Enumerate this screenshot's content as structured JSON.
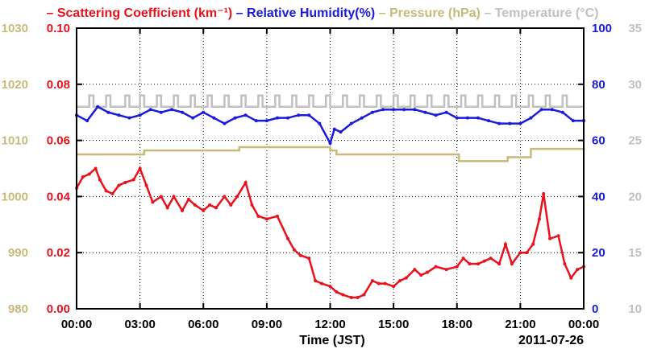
{
  "chart_data": {
    "type": "line",
    "legend": {
      "placement": "top",
      "entries": [
        {
          "name": "Scattering Coefficient (km⁻¹)",
          "color": "#e8111c"
        },
        {
          "name": "Relative Humidity(%)",
          "color": "#1a1adc"
        },
        {
          "name": "Pressure (hPa)",
          "color": "#c8b97a"
        },
        {
          "name": "Temperature (°C)",
          "color": "#c0c0c0"
        }
      ]
    },
    "xlabel": "Time (JST)",
    "date_label": "2011-07-26",
    "x_ticks": [
      "00:00",
      "03:00",
      "06:00",
      "09:00",
      "12:00",
      "15:00",
      "18:00",
      "21:00",
      "00:00"
    ],
    "xlim_hours": [
      0,
      24
    ],
    "grid": true,
    "axes": {
      "scattering": {
        "side": "left-inner",
        "color": "#e8111c",
        "ylim": [
          0.0,
          0.1
        ],
        "ticks": [
          "0.00",
          "0.02",
          "0.04",
          "0.06",
          "0.08",
          "0.10"
        ]
      },
      "pressure": {
        "side": "left-outer",
        "color": "#c8b97a",
        "ylim": [
          980,
          1030
        ],
        "ticks": [
          "980",
          "990",
          "1000",
          "1010",
          "1020",
          "1030"
        ]
      },
      "humidity": {
        "side": "right-inner",
        "color": "#1a1adc",
        "ylim": [
          0,
          100
        ],
        "ticks": [
          "0",
          "20",
          "40",
          "60",
          "80",
          "100"
        ]
      },
      "temperature": {
        "side": "right-outer",
        "color": "#c0c0c0",
        "ylim": [
          10,
          35
        ],
        "ticks": [
          "10",
          "15",
          "20",
          "25",
          "30",
          "35"
        ]
      }
    },
    "series": [
      {
        "name": "Scattering Coefficient",
        "axis": "scattering",
        "color": "#e8111c",
        "markers": true,
        "x": [
          0,
          0.3,
          0.6,
          0.9,
          1.1,
          1.4,
          1.7,
          2.0,
          2.3,
          2.7,
          3.0,
          3.3,
          3.6,
          4.0,
          4.3,
          4.6,
          5.0,
          5.3,
          5.6,
          6.0,
          6.3,
          6.6,
          7.0,
          7.3,
          7.6,
          8.0,
          8.3,
          8.6,
          9.0,
          9.5,
          10.0,
          10.3,
          10.6,
          11.0,
          11.3,
          11.6,
          12.0,
          12.3,
          12.6,
          13.0,
          13.3,
          13.6,
          14.0,
          14.3,
          14.6,
          15.0,
          15.3,
          15.6,
          16.0,
          16.3,
          16.6,
          17.0,
          17.5,
          18.0,
          18.3,
          18.6,
          19.0,
          19.3,
          19.6,
          20.0,
          20.3,
          20.6,
          21.0,
          21.3,
          21.6,
          21.9,
          22.1,
          22.4,
          22.8,
          23.1,
          23.4,
          23.7,
          24.0
        ],
        "y": [
          0.043,
          0.047,
          0.048,
          0.05,
          0.046,
          0.042,
          0.041,
          0.044,
          0.045,
          0.046,
          0.05,
          0.044,
          0.038,
          0.04,
          0.036,
          0.04,
          0.035,
          0.039,
          0.037,
          0.035,
          0.037,
          0.036,
          0.04,
          0.037,
          0.04,
          0.045,
          0.037,
          0.033,
          0.032,
          0.033,
          0.025,
          0.021,
          0.019,
          0.018,
          0.01,
          0.009,
          0.008,
          0.006,
          0.005,
          0.004,
          0.004,
          0.005,
          0.01,
          0.009,
          0.009,
          0.008,
          0.01,
          0.011,
          0.014,
          0.012,
          0.013,
          0.015,
          0.014,
          0.015,
          0.018,
          0.016,
          0.016,
          0.017,
          0.018,
          0.016,
          0.023,
          0.016,
          0.02,
          0.02,
          0.023,
          0.032,
          0.041,
          0.025,
          0.026,
          0.016,
          0.011,
          0.014,
          0.015
        ]
      },
      {
        "name": "Relative Humidity",
        "axis": "humidity",
        "color": "#1a1adc",
        "markers": true,
        "x": [
          0,
          0.5,
          1.0,
          1.5,
          2.0,
          2.5,
          3.0,
          3.5,
          4.0,
          4.5,
          5.0,
          5.5,
          6.0,
          6.5,
          7.0,
          7.5,
          8.0,
          8.5,
          9.0,
          9.5,
          10.0,
          10.5,
          11.0,
          11.5,
          12.0,
          12.2,
          12.5,
          13.0,
          13.5,
          14.0,
          14.5,
          15.0,
          15.5,
          16.0,
          16.5,
          17.0,
          17.5,
          18.0,
          18.5,
          19.0,
          19.5,
          20.0,
          20.5,
          21.0,
          21.5,
          22.0,
          22.5,
          23.0,
          23.5,
          24.0
        ],
        "y": [
          69,
          67,
          72,
          70,
          69,
          68,
          69,
          71,
          70,
          71,
          70,
          68,
          70,
          68,
          66,
          68,
          69,
          67,
          67,
          68,
          68,
          69,
          69,
          66,
          59,
          64,
          63,
          66,
          68,
          70,
          71,
          71,
          71,
          71,
          70,
          69,
          70,
          68,
          68,
          68,
          67,
          66,
          66,
          66,
          68,
          71,
          71,
          70,
          67,
          67
        ]
      },
      {
        "name": "Pressure",
        "axis": "pressure",
        "color": "#c8b97a",
        "markers": false,
        "step": true,
        "x": [
          0,
          3.0,
          3.2,
          7.5,
          7.7,
          11.8,
          12.0,
          12.3,
          17.9,
          18.1,
          20.2,
          20.4,
          21.3,
          21.5,
          24.0
        ],
        "y": [
          1007.5,
          1007.5,
          1008.2,
          1008.2,
          1008.8,
          1008.8,
          1008.2,
          1007.5,
          1007.5,
          1006.3,
          1006.3,
          1007.0,
          1007.0,
          1008.5,
          1008.2
        ]
      },
      {
        "name": "Temperature",
        "axis": "temperature",
        "color": "#c0c0c0",
        "markers": false,
        "step": true,
        "x": [
          0,
          0.6,
          0.8,
          1.4,
          1.6,
          2.3,
          2.5,
          3.0,
          3.2,
          3.8,
          4.0,
          4.6,
          4.8,
          5.4,
          5.6,
          6.2,
          6.4,
          7.0,
          7.2,
          7.8,
          8.0,
          8.6,
          8.8,
          9.4,
          9.6,
          10.2,
          10.4,
          11.0,
          11.2,
          11.8,
          12.0,
          12.6,
          12.8,
          13.4,
          13.6,
          14.2,
          14.4,
          15.0,
          15.2,
          15.8,
          16.0,
          16.6,
          16.8,
          17.4,
          17.6,
          18.2,
          18.4,
          19.0,
          19.2,
          19.8,
          20.0,
          20.6,
          20.8,
          21.4,
          21.6,
          22.2,
          22.4,
          23.0,
          23.2,
          24.0
        ],
        "y": [
          28,
          29,
          28,
          29,
          28,
          29,
          28,
          29,
          28,
          29,
          28,
          29,
          28,
          29,
          28,
          29,
          28,
          29,
          28,
          29,
          28,
          29,
          28,
          29,
          28,
          29,
          28,
          29,
          28,
          29,
          28,
          29,
          28,
          29,
          28,
          29,
          28,
          29,
          28,
          29,
          28,
          29,
          28,
          29,
          28,
          29,
          28,
          29,
          28,
          29,
          28,
          29,
          28,
          29,
          28,
          29,
          28,
          29,
          28,
          28
        ]
      }
    ]
  }
}
